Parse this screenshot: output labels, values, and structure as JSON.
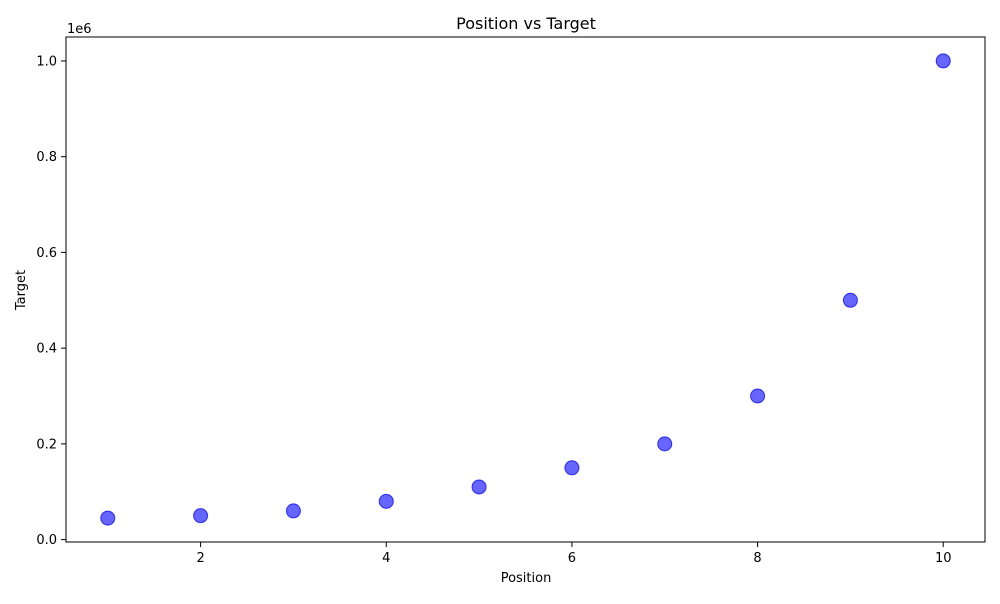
{
  "chart_data": {
    "type": "scatter",
    "title": "Position vs Target",
    "xlabel": "Position",
    "ylabel": "Target",
    "y_offset_label": "1e6",
    "xlim": [
      0.55,
      10.45
    ],
    "ylim": [
      -0.005,
      1.05
    ],
    "x_ticks": [
      2,
      4,
      6,
      8,
      10
    ],
    "x_tick_labels": [
      "2",
      "4",
      "6",
      "8",
      "10"
    ],
    "y_ticks": [
      0.0,
      0.2,
      0.4,
      0.6,
      0.8,
      1.0
    ],
    "y_tick_labels": [
      "0.0",
      "0.2",
      "0.4",
      "0.6",
      "0.8",
      "1.0"
    ],
    "grid": false,
    "legend": "none",
    "marker_color": "#0000ff",
    "marker_opacity": 0.6,
    "series": [
      {
        "x": [
          1,
          2,
          3,
          4,
          5,
          6,
          7,
          8,
          9,
          10
        ],
        "y": [
          0.045,
          0.05,
          0.06,
          0.08,
          0.11,
          0.15,
          0.2,
          0.3,
          0.5,
          1.0
        ]
      }
    ]
  }
}
